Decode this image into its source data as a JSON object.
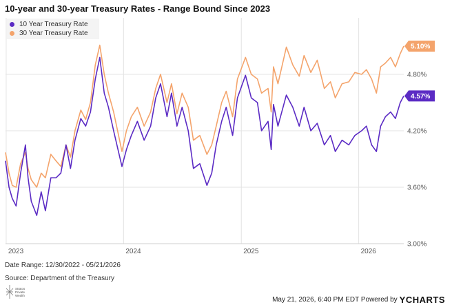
{
  "chart_data": {
    "type": "line",
    "title": "10-year and 30-year Treasury Rates - Range Bound Since 2023",
    "x_tick_labels": [
      "2023",
      "2024",
      "2025",
      "2026"
    ],
    "x_ticks": [
      "2023-01-01",
      "2024-01-01",
      "2025-01-01",
      "2026-01-01"
    ],
    "x_range": [
      "2022-12-30",
      "2026-05-21"
    ],
    "y_tick_labels": [
      "3.00%",
      "3.60%",
      "4.20%",
      "4.80%"
    ],
    "y_ticks": [
      3.0,
      3.6,
      4.2,
      4.8
    ],
    "ylim": [
      3.0,
      5.4
    ],
    "grid": true,
    "legend_position": "top-left",
    "series": [
      {
        "name": "10 Year Treasury Rate",
        "color": "#5b2bc4",
        "end_label": "4.57%",
        "points": [
          [
            "2022-12-30",
            3.88
          ],
          [
            "2023-01-10",
            3.6
          ],
          [
            "2023-01-20",
            3.48
          ],
          [
            "2023-02-01",
            3.4
          ],
          [
            "2023-02-15",
            3.75
          ],
          [
            "2023-03-02",
            4.05
          ],
          [
            "2023-03-10",
            3.7
          ],
          [
            "2023-03-20",
            3.45
          ],
          [
            "2023-04-06",
            3.3
          ],
          [
            "2023-04-20",
            3.55
          ],
          [
            "2023-05-03",
            3.35
          ],
          [
            "2023-05-20",
            3.7
          ],
          [
            "2023-06-05",
            3.7
          ],
          [
            "2023-06-20",
            3.75
          ],
          [
            "2023-07-06",
            4.05
          ],
          [
            "2023-07-20",
            3.8
          ],
          [
            "2023-08-03",
            4.1
          ],
          [
            "2023-08-21",
            4.33
          ],
          [
            "2023-09-05",
            4.25
          ],
          [
            "2023-09-20",
            4.4
          ],
          [
            "2023-10-05",
            4.75
          ],
          [
            "2023-10-19",
            4.98
          ],
          [
            "2023-11-02",
            4.6
          ],
          [
            "2023-11-15",
            4.45
          ],
          [
            "2023-12-01",
            4.2
          ],
          [
            "2023-12-27",
            3.82
          ],
          [
            "2024-01-10",
            4.0
          ],
          [
            "2024-01-25",
            4.15
          ],
          [
            "2024-02-13",
            4.3
          ],
          [
            "2024-03-05",
            4.1
          ],
          [
            "2024-03-25",
            4.25
          ],
          [
            "2024-04-10",
            4.55
          ],
          [
            "2024-04-25",
            4.7
          ],
          [
            "2024-05-15",
            4.35
          ],
          [
            "2024-05-29",
            4.6
          ],
          [
            "2024-06-15",
            4.25
          ],
          [
            "2024-07-01",
            4.45
          ],
          [
            "2024-07-20",
            4.2
          ],
          [
            "2024-08-05",
            3.8
          ],
          [
            "2024-08-25",
            3.85
          ],
          [
            "2024-09-16",
            3.62
          ],
          [
            "2024-10-01",
            3.75
          ],
          [
            "2024-10-15",
            4.05
          ],
          [
            "2024-11-01",
            4.3
          ],
          [
            "2024-11-15",
            4.45
          ],
          [
            "2024-12-05",
            4.15
          ],
          [
            "2024-12-20",
            4.55
          ],
          [
            "2025-01-14",
            4.79
          ],
          [
            "2025-02-01",
            4.55
          ],
          [
            "2025-02-20",
            4.5
          ],
          [
            "2025-03-05",
            4.2
          ],
          [
            "2025-03-25",
            4.3
          ],
          [
            "2025-04-04",
            4.0
          ],
          [
            "2025-04-11",
            4.48
          ],
          [
            "2025-04-25",
            4.25
          ],
          [
            "2025-05-21",
            4.58
          ],
          [
            "2025-06-10",
            4.45
          ],
          [
            "2025-06-30",
            4.25
          ],
          [
            "2025-07-15",
            4.45
          ],
          [
            "2025-08-05",
            4.2
          ],
          [
            "2025-08-25",
            4.28
          ],
          [
            "2025-09-16",
            4.05
          ],
          [
            "2025-10-05",
            4.15
          ],
          [
            "2025-10-20",
            3.98
          ],
          [
            "2025-11-10",
            4.1
          ],
          [
            "2025-12-01",
            4.05
          ],
          [
            "2025-12-20",
            4.15
          ],
          [
            "2026-01-10",
            4.2
          ],
          [
            "2026-01-25",
            4.25
          ],
          [
            "2026-02-10",
            4.05
          ],
          [
            "2026-02-25",
            3.98
          ],
          [
            "2026-03-10",
            4.25
          ],
          [
            "2026-03-25",
            4.35
          ],
          [
            "2026-04-10",
            4.4
          ],
          [
            "2026-04-25",
            4.33
          ],
          [
            "2026-05-10",
            4.5
          ],
          [
            "2026-05-21",
            4.57
          ]
        ]
      },
      {
        "name": "30 Year Treasury Rate",
        "color": "#f4a46c",
        "end_label": "5.10%",
        "points": [
          [
            "2022-12-30",
            3.97
          ],
          [
            "2023-01-10",
            3.75
          ],
          [
            "2023-01-20",
            3.62
          ],
          [
            "2023-02-01",
            3.6
          ],
          [
            "2023-02-15",
            3.85
          ],
          [
            "2023-03-02",
            3.97
          ],
          [
            "2023-03-10",
            3.8
          ],
          [
            "2023-03-20",
            3.68
          ],
          [
            "2023-04-06",
            3.6
          ],
          [
            "2023-04-20",
            3.75
          ],
          [
            "2023-05-03",
            3.7
          ],
          [
            "2023-05-20",
            3.95
          ],
          [
            "2023-06-05",
            3.88
          ],
          [
            "2023-06-20",
            3.82
          ],
          [
            "2023-07-06",
            4.05
          ],
          [
            "2023-07-20",
            3.92
          ],
          [
            "2023-08-03",
            4.2
          ],
          [
            "2023-08-21",
            4.42
          ],
          [
            "2023-09-05",
            4.32
          ],
          [
            "2023-09-20",
            4.5
          ],
          [
            "2023-10-05",
            4.9
          ],
          [
            "2023-10-19",
            5.11
          ],
          [
            "2023-11-02",
            4.8
          ],
          [
            "2023-11-15",
            4.6
          ],
          [
            "2023-12-01",
            4.4
          ],
          [
            "2023-12-27",
            3.98
          ],
          [
            "2024-01-10",
            4.2
          ],
          [
            "2024-01-25",
            4.35
          ],
          [
            "2024-02-13",
            4.45
          ],
          [
            "2024-03-05",
            4.25
          ],
          [
            "2024-03-25",
            4.4
          ],
          [
            "2024-04-10",
            4.65
          ],
          [
            "2024-04-25",
            4.8
          ],
          [
            "2024-05-15",
            4.5
          ],
          [
            "2024-05-29",
            4.7
          ],
          [
            "2024-06-15",
            4.38
          ],
          [
            "2024-07-01",
            4.6
          ],
          [
            "2024-07-20",
            4.45
          ],
          [
            "2024-08-05",
            4.1
          ],
          [
            "2024-08-25",
            4.15
          ],
          [
            "2024-09-16",
            3.95
          ],
          [
            "2024-10-01",
            4.05
          ],
          [
            "2024-10-15",
            4.25
          ],
          [
            "2024-11-01",
            4.5
          ],
          [
            "2024-11-15",
            4.62
          ],
          [
            "2024-12-05",
            4.35
          ],
          [
            "2024-12-20",
            4.75
          ],
          [
            "2025-01-14",
            4.98
          ],
          [
            "2025-02-01",
            4.8
          ],
          [
            "2025-02-20",
            4.75
          ],
          [
            "2025-03-05",
            4.6
          ],
          [
            "2025-03-25",
            4.65
          ],
          [
            "2025-04-04",
            4.4
          ],
          [
            "2025-04-11",
            4.88
          ],
          [
            "2025-04-25",
            4.7
          ],
          [
            "2025-05-21",
            5.09
          ],
          [
            "2025-06-10",
            4.9
          ],
          [
            "2025-06-30",
            4.78
          ],
          [
            "2025-07-15",
            5.0
          ],
          [
            "2025-08-05",
            4.82
          ],
          [
            "2025-08-25",
            4.95
          ],
          [
            "2025-09-16",
            4.65
          ],
          [
            "2025-10-05",
            4.72
          ],
          [
            "2025-10-20",
            4.55
          ],
          [
            "2025-11-10",
            4.7
          ],
          [
            "2025-12-01",
            4.72
          ],
          [
            "2025-12-20",
            4.82
          ],
          [
            "2026-01-10",
            4.8
          ],
          [
            "2026-01-25",
            4.85
          ],
          [
            "2026-02-10",
            4.75
          ],
          [
            "2026-02-25",
            4.6
          ],
          [
            "2026-03-10",
            4.88
          ],
          [
            "2026-03-25",
            4.92
          ],
          [
            "2026-04-10",
            4.98
          ],
          [
            "2026-04-25",
            4.88
          ],
          [
            "2026-05-10",
            5.02
          ],
          [
            "2026-05-21",
            5.1
          ]
        ]
      }
    ]
  },
  "footer": {
    "date_range": "Date Range: 12/30/2022 - 05/21/2026",
    "source": "Source: Department of the Treasury",
    "logo_text": "Stratos Private Wealth",
    "timestamp": "May 21, 2026, 6:40 PM EDT Powered by",
    "brand": "YCHARTS"
  }
}
